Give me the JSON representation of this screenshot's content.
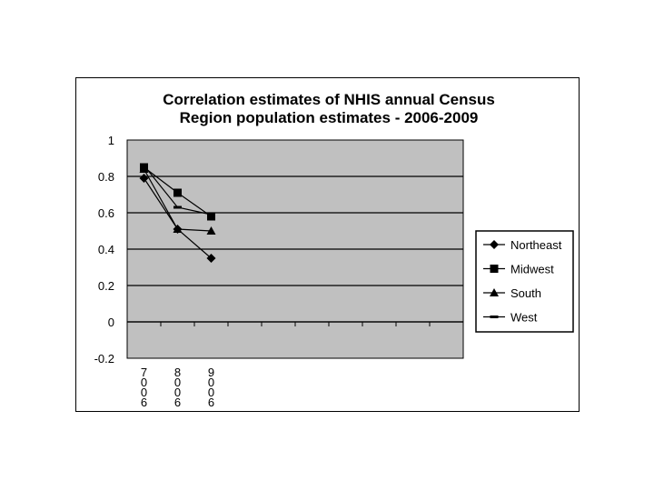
{
  "chart_data": {
    "type": "line",
    "title": [
      "Correlation estimates of NHIS annual Census",
      "Region population estimates - 2006-2009"
    ],
    "categories": [
      "7006",
      "8006",
      "9006"
    ],
    "empty_category_slots": 7,
    "ylim": [
      -0.2,
      1
    ],
    "yticks": [
      -0.2,
      0,
      0.2,
      0.4,
      0.6,
      0.8,
      1
    ],
    "ytick_labels": [
      "-0.2",
      "0",
      "0.2",
      "0.4",
      "0.6",
      "0.8",
      "1"
    ],
    "grid": "horizontal",
    "legend_position": "right",
    "series": [
      {
        "name": "Northeast",
        "marker": "diamond",
        "values": [
          0.79,
          0.51,
          0.35
        ]
      },
      {
        "name": "Midwest",
        "marker": "square",
        "values": [
          0.85,
          0.71,
          0.58
        ]
      },
      {
        "name": "South",
        "marker": "triangle",
        "values": [
          0.84,
          0.51,
          0.5
        ]
      },
      {
        "name": "West",
        "marker": "dash",
        "values": [
          0.86,
          0.63,
          0.59
        ]
      }
    ]
  },
  "colors": {
    "plot_bg": "#c0c0c0",
    "line": "#000000",
    "frame_bg": "#ffffff"
  }
}
